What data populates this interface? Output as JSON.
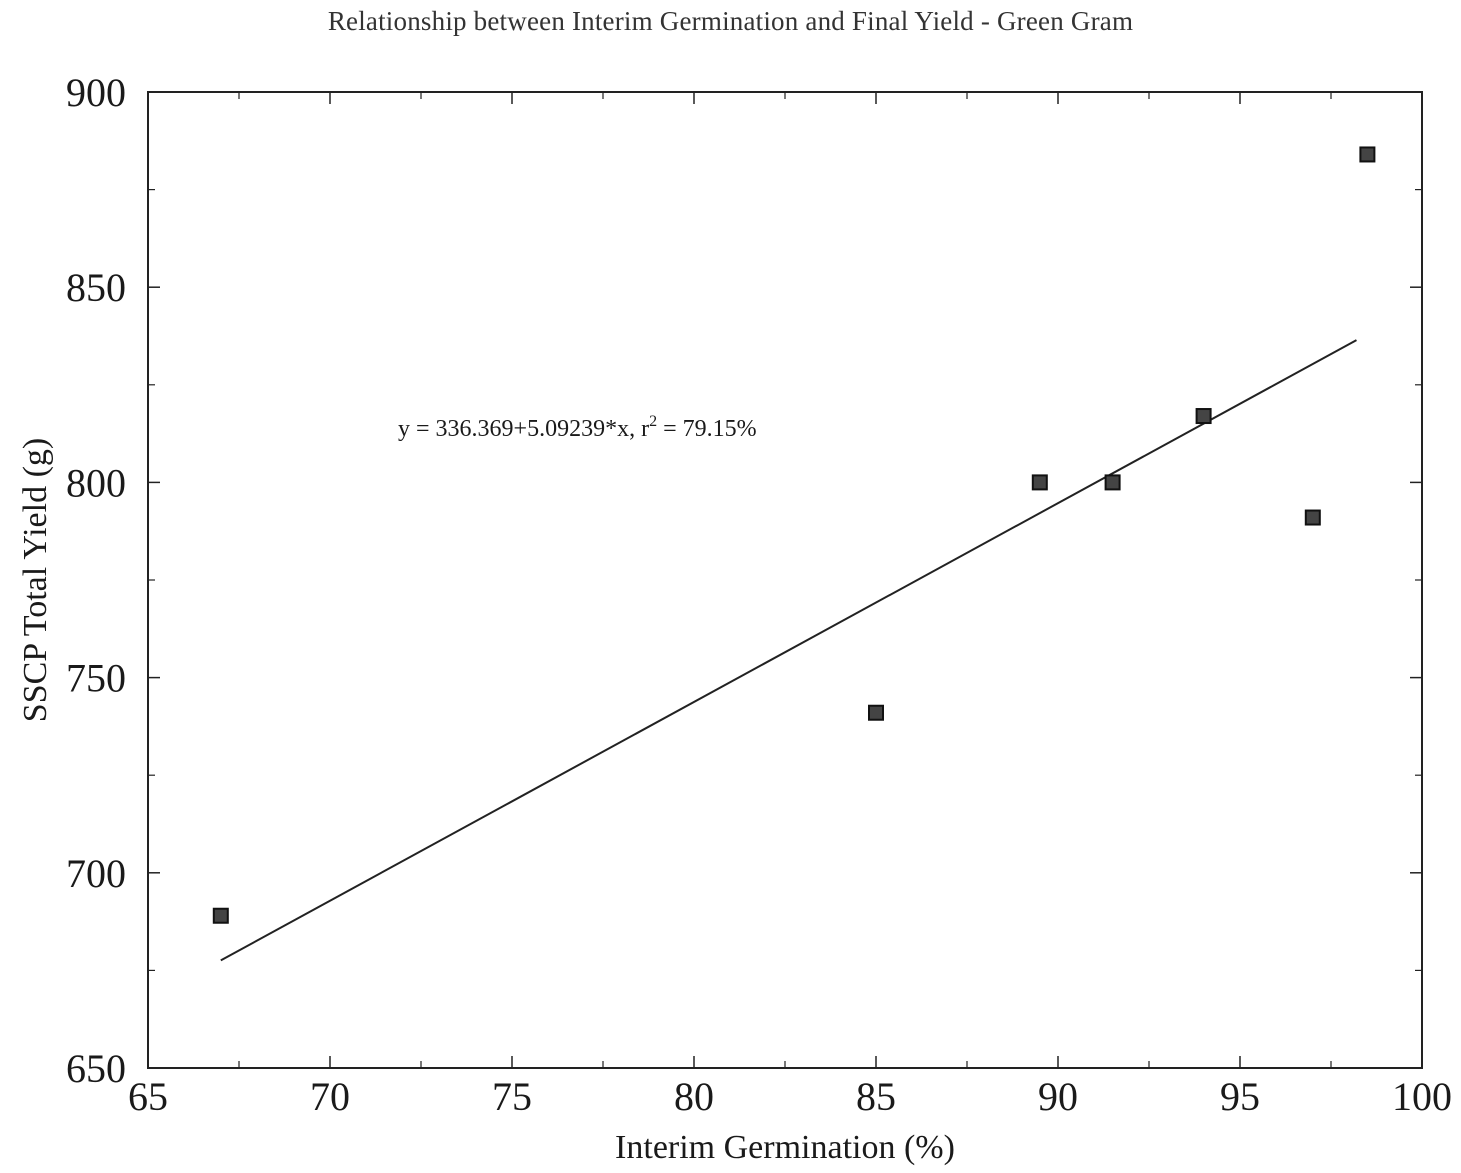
{
  "chart_data": {
    "type": "scatter",
    "title": "Relationship between Interim Germination and Final Yield - Green Gram",
    "xlabel": "Interim Germination (%)",
    "ylabel": "SSCP Total Yield (g)",
    "xlim": [
      65,
      100
    ],
    "ylim": [
      650,
      900
    ],
    "xticks": [
      65,
      70,
      75,
      80,
      85,
      90,
      95,
      100
    ],
    "yticks": [
      650,
      700,
      750,
      800,
      850,
      900
    ],
    "grid": false,
    "series": [
      {
        "points": [
          {
            "x": 67,
            "y": 689
          },
          {
            "x": 85,
            "y": 741
          },
          {
            "x": 89.5,
            "y": 800
          },
          {
            "x": 91.5,
            "y": 800
          },
          {
            "x": 94,
            "y": 817
          },
          {
            "x": 97,
            "y": 791
          },
          {
            "x": 98.5,
            "y": 884
          }
        ]
      }
    ],
    "fit": {
      "type": "linear",
      "intercept": 336.369,
      "slope": 5.09239,
      "x_range": [
        67,
        98.2
      ],
      "equation_prefix": "y = 336.369+5.09239*x, r",
      "equation_sup": "2",
      "equation_suffix": " = 79.15%"
    }
  }
}
